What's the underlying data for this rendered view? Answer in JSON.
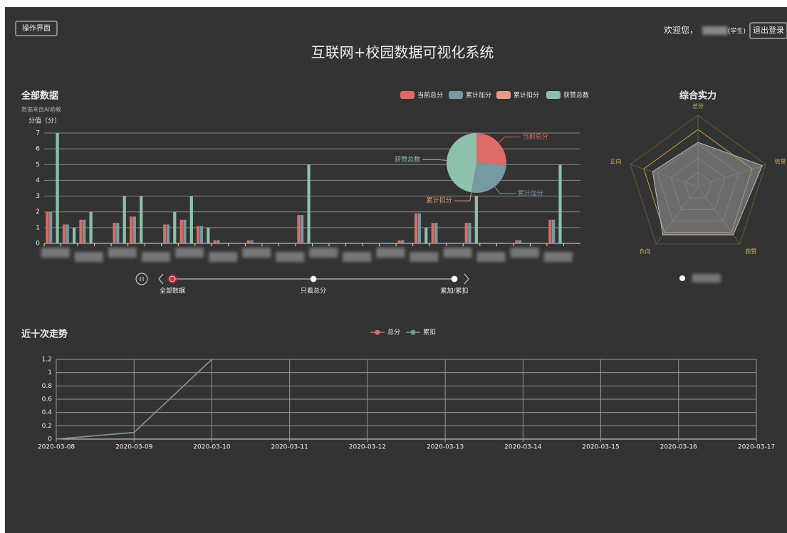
{
  "header": {
    "menu_button": "操作界面",
    "title": "互联网+校园数据可视化系统",
    "welcome": "欢迎您，",
    "role": "(学生)",
    "logout_button": "退出登录"
  },
  "timeline": {
    "labels": [
      "全部数据",
      "只看总分",
      "累加/累扣"
    ],
    "current": 0
  },
  "chart_data": [
    {
      "type": "bar",
      "title": "全部数据",
      "subtitle": "数据来自AI助教",
      "y_label": "分值（分）",
      "categories": [
        null,
        null,
        null,
        null,
        null,
        null,
        null,
        null,
        null,
        null,
        null,
        null,
        null,
        null,
        null,
        null,
        null,
        null,
        null,
        null,
        null,
        null,
        null,
        null,
        null,
        null,
        null,
        null,
        null,
        null,
        null,
        null
      ],
      "series": [
        {
          "name": "当前总分",
          "color": "#dd6b66",
          "values": [
            2,
            1.2,
            1.5,
            0,
            1.3,
            1.7,
            0,
            1.2,
            1.5,
            1.1,
            0.2,
            0,
            0.2,
            0,
            0,
            1.8,
            0,
            0,
            0,
            0,
            0,
            0.2,
            1.9,
            1.3,
            0,
            1.3,
            0,
            0,
            0.2,
            0,
            1.5,
            0
          ]
        },
        {
          "name": "累计加分",
          "color": "#759aa0",
          "values": [
            2,
            1.2,
            1.5,
            0,
            1.3,
            1.7,
            0,
            1.2,
            1.5,
            1.1,
            0.2,
            0,
            0.2,
            0,
            0,
            1.8,
            0,
            0,
            0,
            0,
            0,
            0.2,
            1.9,
            1.3,
            0,
            1.3,
            0,
            0,
            0.2,
            0,
            1.5,
            0
          ]
        },
        {
          "name": "累计扣分",
          "color": "#e69d87",
          "values": [
            0,
            0,
            0,
            0,
            0,
            0,
            0,
            0,
            0,
            0,
            0,
            0,
            0,
            0,
            0,
            0,
            0,
            0,
            0,
            0,
            0,
            0,
            0,
            0,
            0,
            0,
            0,
            0,
            0,
            0,
            0,
            0
          ]
        },
        {
          "name": "获赞总数",
          "color": "#8dc1a9",
          "values": [
            7,
            1,
            2,
            0,
            3,
            3,
            0,
            2,
            3,
            1,
            0,
            0,
            0,
            0,
            0,
            5,
            0,
            0,
            0,
            0,
            0,
            0,
            1,
            0,
            0,
            3,
            0,
            0,
            0,
            0,
            5,
            0
          ]
        }
      ],
      "ylim": [
        0,
        7
      ],
      "yticks": [
        0,
        1,
        2,
        3,
        4,
        5,
        6,
        7
      ],
      "grid": true,
      "legend": "top-right"
    },
    {
      "type": "pie",
      "categories": [
        "当前总分",
        "累计加分",
        "累计扣分",
        "获赞总数"
      ],
      "values": [
        20.1,
        20.1,
        0,
        36
      ],
      "colors": [
        "#dd6b66",
        "#759aa0",
        "#e69d87",
        "#8dc1a9"
      ]
    },
    {
      "type": "radar",
      "title": "综合实力",
      "indicators": [
        "总分",
        "信誉",
        "获赞",
        "负向",
        "正向"
      ],
      "values": [
        0.62,
        0.95,
        0.84,
        0.84,
        0.67
      ],
      "rlim": [
        0,
        1
      ],
      "color": "#999999"
    },
    {
      "type": "line",
      "title": "近十次走势",
      "x": [
        "2020-03-08",
        "2020-03-09",
        "2020-03-10",
        "2020-03-11",
        "2020-03-12",
        "2020-03-13",
        "2020-03-14",
        "2020-03-15",
        "2020-03-16",
        "2020-03-17"
      ],
      "series": [
        {
          "name": "总分",
          "color": "#dd6b66",
          "values": [
            0,
            0.1,
            1.2,
            null,
            null,
            null,
            null,
            null,
            null,
            null
          ]
        },
        {
          "name": "累扣",
          "color": "#759aa0",
          "values": [
            0,
            0.1,
            1.2,
            null,
            null,
            null,
            null,
            null,
            null,
            null
          ]
        }
      ],
      "ylim": [
        0,
        1.2
      ],
      "yticks": [
        0,
        0.2,
        0.4,
        0.6,
        0.8,
        1,
        1.2
      ],
      "grid": true,
      "legend": "top-center"
    }
  ]
}
